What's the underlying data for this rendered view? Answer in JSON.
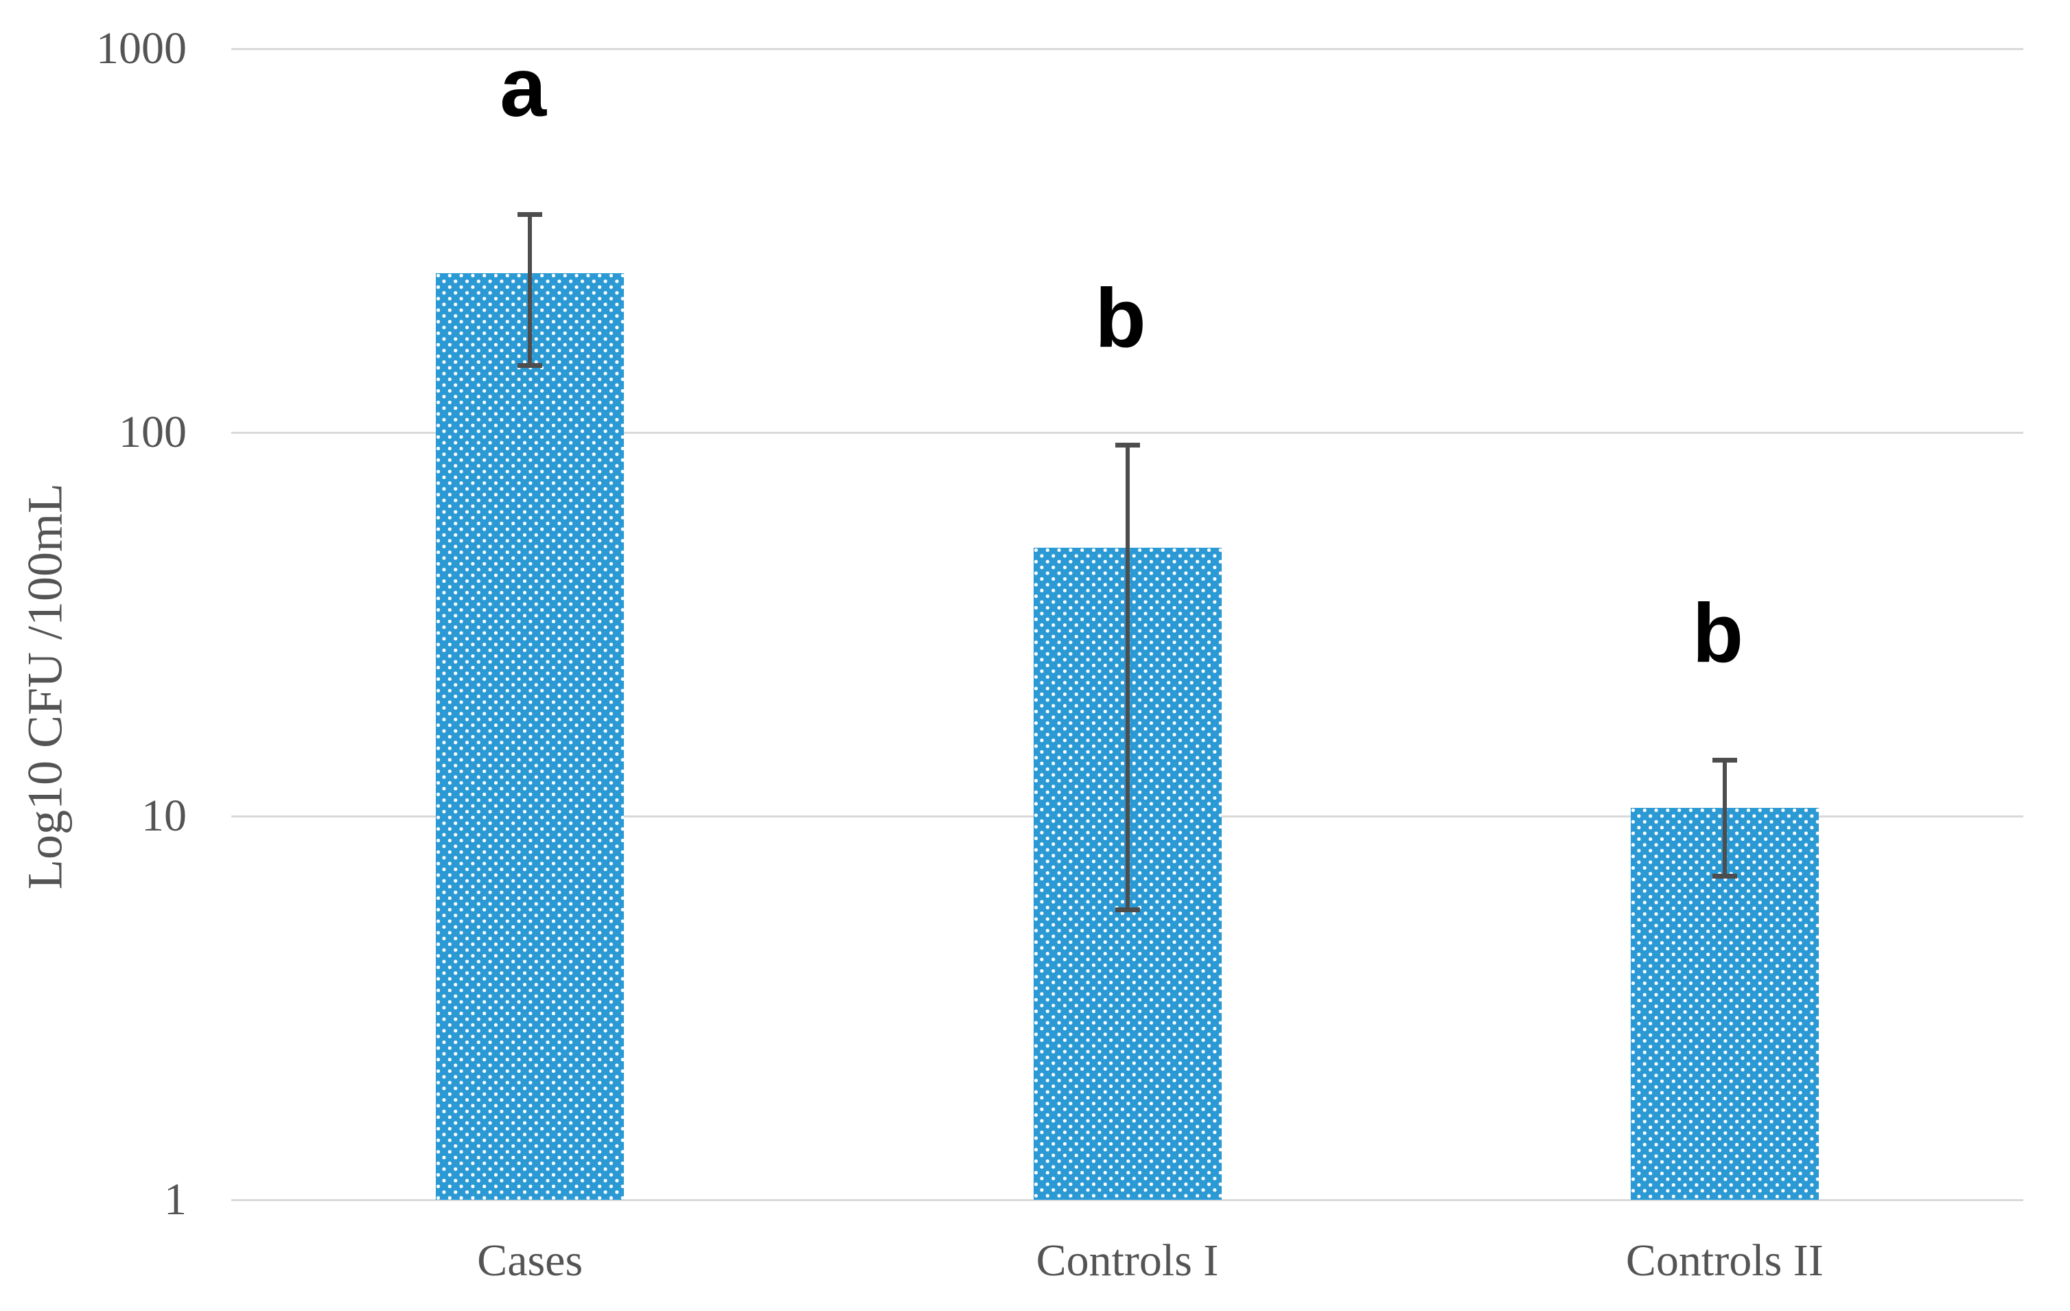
{
  "chart_data": {
    "type": "bar",
    "title": "",
    "ylabel": "Log10 CFU /100mL",
    "xlabel": "",
    "yscale": "log",
    "ylim": [
      1,
      1000
    ],
    "y_ticks": [
      1,
      10,
      100,
      1000
    ],
    "y_tick_labels": [
      "1",
      "10",
      "100",
      "1000"
    ],
    "grid": "horizontal",
    "legend": "none",
    "categories": [
      "Cases",
      "Controls I",
      "Controls II"
    ],
    "series": [
      {
        "name": "Log10 CFU /100mL",
        "values": [
          260,
          50,
          10.5
        ],
        "error_low": [
          150,
          5.7,
          7
        ],
        "error_high": [
          370,
          93,
          14
        ]
      }
    ],
    "significance_letters": [
      "a",
      "b",
      "b"
    ],
    "colors": {
      "bar_fill": "#2A99D4",
      "bar_pattern_dots": "#FFFFFF",
      "gridline": "#D9D9D9",
      "error_bar": "#4D4D4D",
      "axis_text": "#545454",
      "letter_text": "#000000"
    }
  }
}
